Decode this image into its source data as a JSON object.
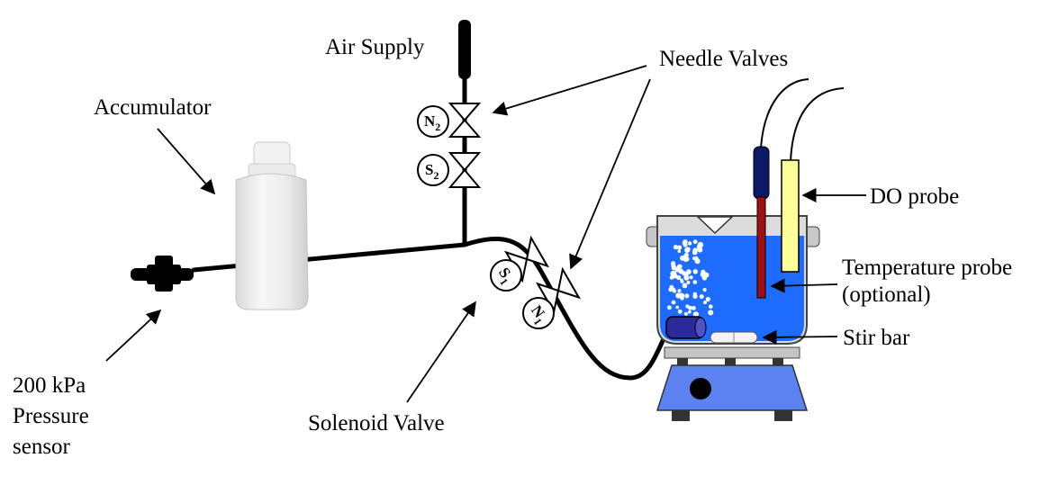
{
  "labels": {
    "air_supply": "Air Supply",
    "needle_valves": "Needle Valves",
    "accumulator": "Accumulator",
    "do_probe": "DO probe",
    "temperature_probe_line1": "Temperature probe",
    "temperature_probe_line2": "(optional)",
    "stir_bar": "Stir bar",
    "solenoid_valve": "Solenoid Valve",
    "pressure_sensor_line1": "200 kPa",
    "pressure_sensor_line2": "Pressure",
    "pressure_sensor_line3": "sensor"
  },
  "valves": {
    "n2_letter": "N",
    "n2_sub": "2",
    "s2_letter": "S",
    "s2_sub": "2",
    "s1_letter": "S",
    "s1_sub": "1",
    "n1_letter": "N",
    "n1_sub": "1"
  },
  "colors": {
    "water": "#1e6bff",
    "stirrer": "#5b82f0",
    "do_probe": "#ffff99",
    "temp_probe": "#a01010",
    "temp_cap": "#0a1a66",
    "diffuser": "#2a2a9a"
  }
}
